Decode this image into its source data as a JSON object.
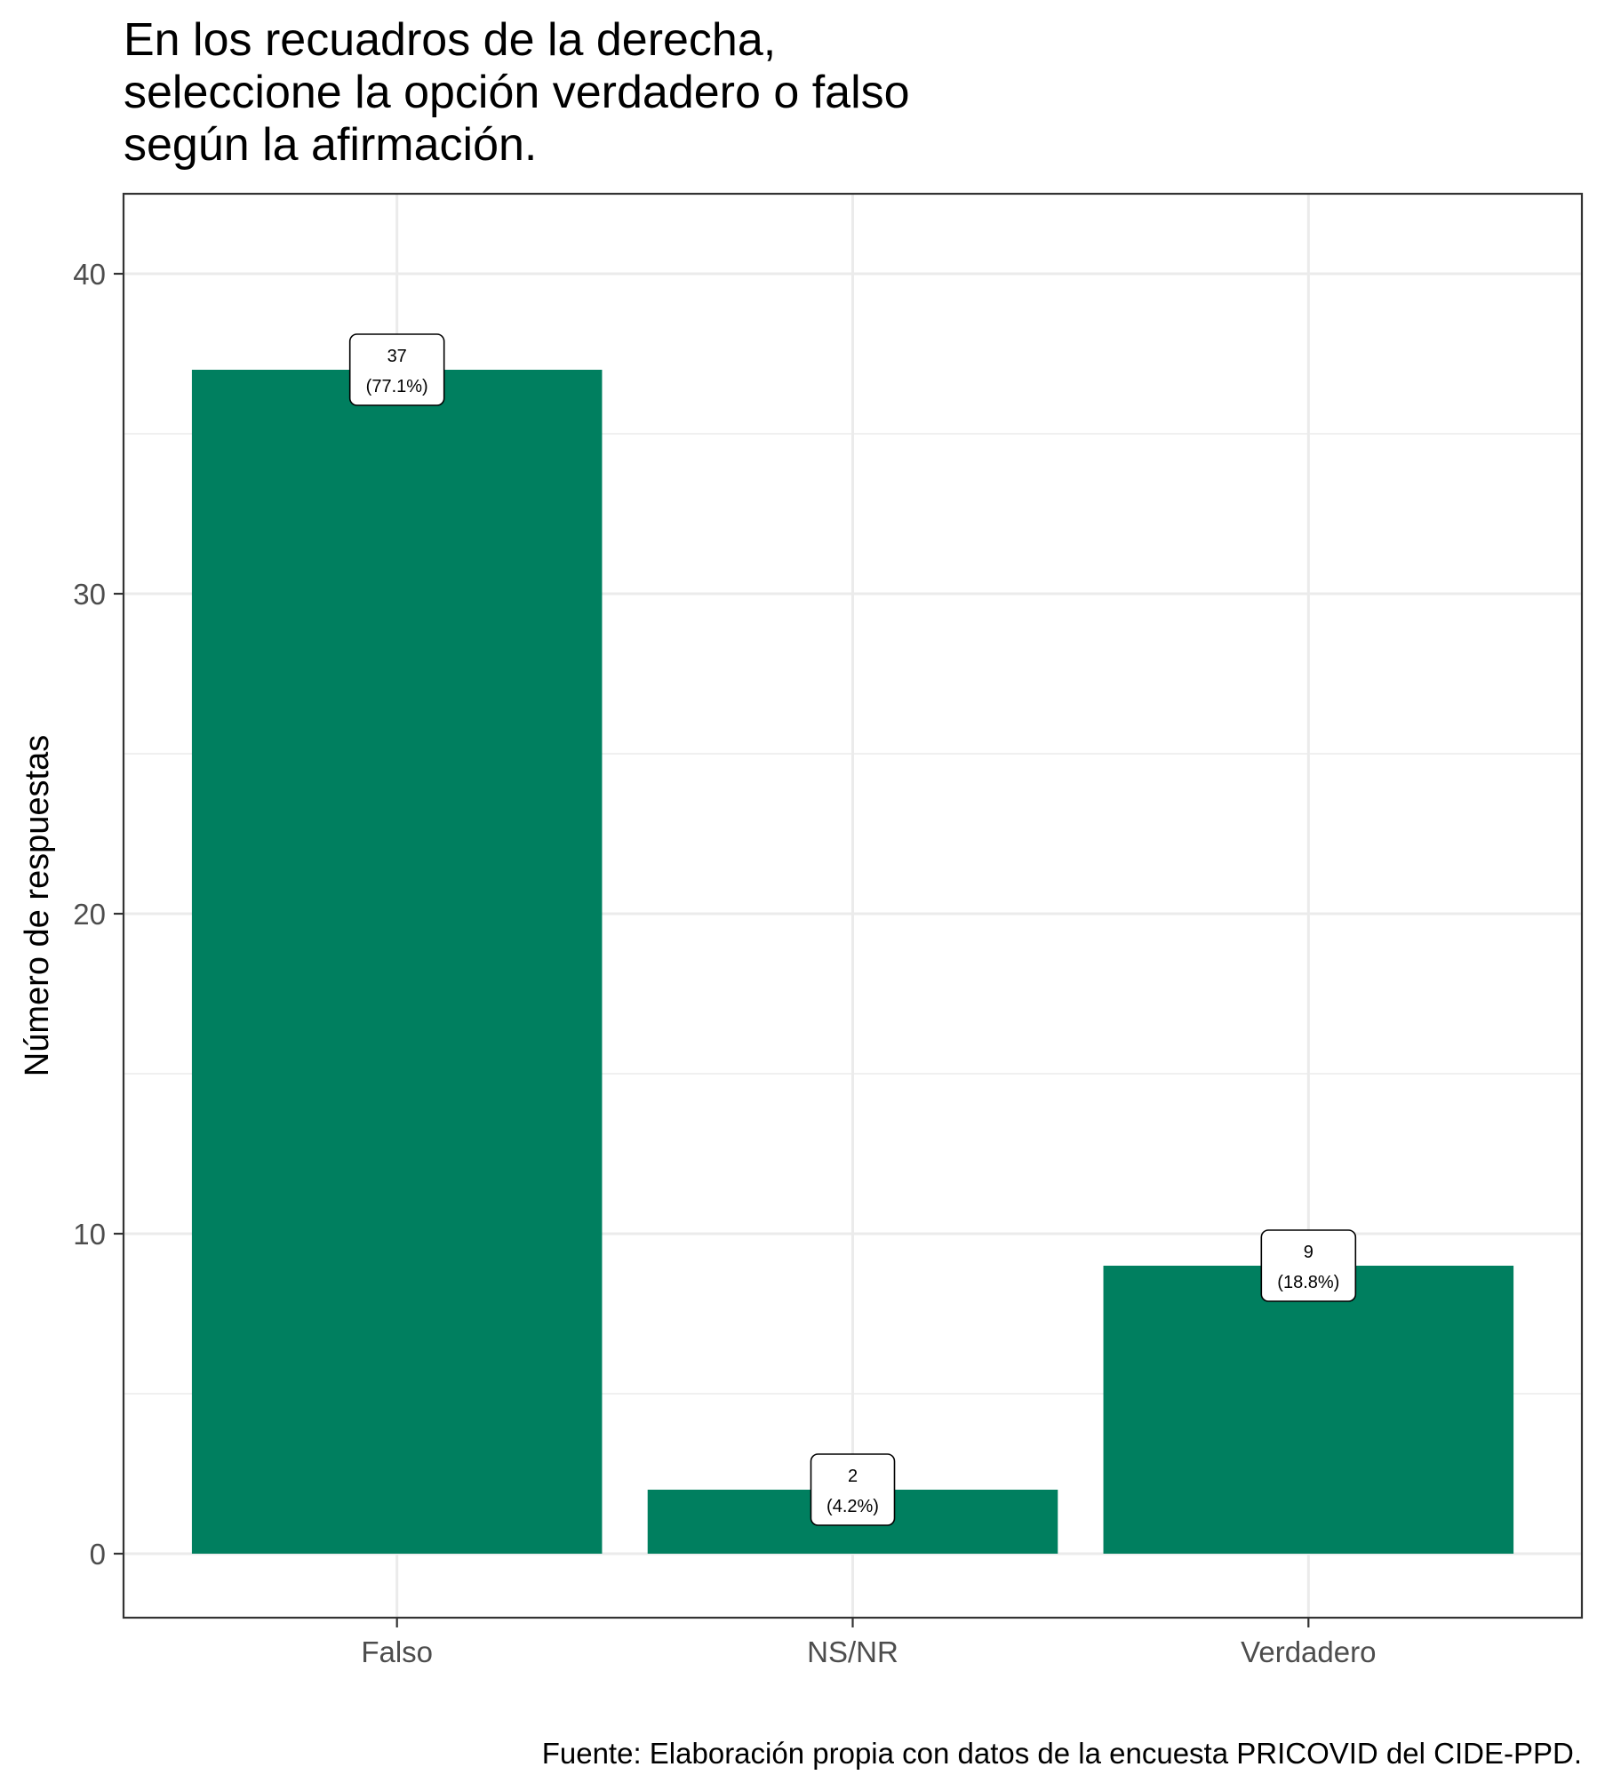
{
  "chart_data": {
    "type": "bar",
    "title_lines": [
      "En los recuadros de la derecha,",
      "seleccione la opción verdadero o falso",
      "según la afirmación."
    ],
    "xlabel": "",
    "ylabel": "Número de respuestas",
    "categories": [
      "Falso",
      "NS/NR",
      "Verdadero"
    ],
    "values": [
      37,
      2,
      9
    ],
    "value_labels": [
      "37",
      "2",
      "9"
    ],
    "percent_labels": [
      "(77.1%)",
      "(4.2%)",
      "(18.8%)"
    ],
    "y_ticks": [
      0,
      10,
      20,
      30,
      40
    ],
    "ylim": [
      -2,
      42.5
    ],
    "grid": true,
    "bar_color": "#007f5f",
    "caption": "Fuente: Elaboración propia con datos de la encuesta PRICOVID del CIDE-PPD."
  }
}
